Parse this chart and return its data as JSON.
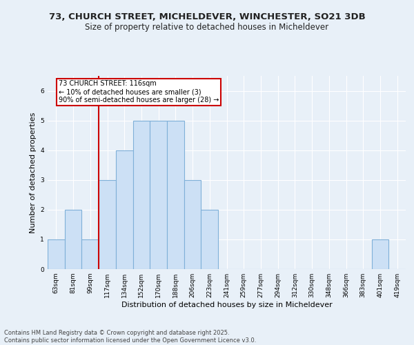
{
  "title_line1": "73, CHURCH STREET, MICHELDEVER, WINCHESTER, SO21 3DB",
  "title_line2": "Size of property relative to detached houses in Micheldever",
  "xlabel": "Distribution of detached houses by size in Micheldever",
  "ylabel": "Number of detached properties",
  "footer": "Contains HM Land Registry data © Crown copyright and database right 2025.\nContains public sector information licensed under the Open Government Licence v3.0.",
  "categories": [
    "63sqm",
    "81sqm",
    "99sqm",
    "117sqm",
    "134sqm",
    "152sqm",
    "170sqm",
    "188sqm",
    "206sqm",
    "223sqm",
    "241sqm",
    "259sqm",
    "277sqm",
    "294sqm",
    "312sqm",
    "330sqm",
    "348sqm",
    "366sqm",
    "383sqm",
    "401sqm",
    "419sqm"
  ],
  "values": [
    1,
    2,
    1,
    3,
    4,
    5,
    5,
    5,
    3,
    2,
    0,
    0,
    0,
    0,
    0,
    0,
    0,
    0,
    0,
    1,
    0
  ],
  "bar_color": "#cce0f5",
  "bar_edge_color": "#7fb0d8",
  "subject_line_label": "73 CHURCH STREET: 116sqm",
  "annotation_smaller": "← 10% of detached houses are smaller (3)",
  "annotation_larger": "90% of semi-detached houses are larger (28) →",
  "annotation_box_color": "#ffffff",
  "annotation_box_edge": "#cc0000",
  "subject_line_color": "#cc0000",
  "ylim": [
    0,
    6.5
  ],
  "yticks": [
    0,
    1,
    2,
    3,
    4,
    5,
    6
  ],
  "background_color": "#e8f0f8",
  "plot_bg_color": "#e8f0f8",
  "grid_color": "#ffffff",
  "title_fontsize": 9.5,
  "subtitle_fontsize": 8.5,
  "axis_label_fontsize": 8,
  "tick_fontsize": 6.5,
  "footer_fontsize": 6,
  "annotation_fontsize": 7
}
